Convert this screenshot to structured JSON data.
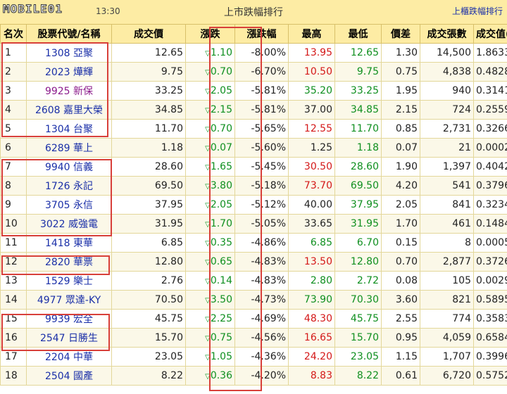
{
  "header": {
    "logo_text": "MOBILE01",
    "time": "13:30",
    "title": "上市跌幅排行",
    "link": "上櫃跌幅排行"
  },
  "columns": [
    "名次",
    "股票代號/名稱",
    "成交價",
    "漲跌",
    "漲跌幅",
    "最高",
    "最低",
    "價差",
    "成交張數",
    "成交值(億)"
  ],
  "rows": [
    {
      "rank": "1",
      "stock": "1308 亞聚",
      "price": "12.65",
      "change": "1.10",
      "pct": "-8.00%",
      "high": "13.95",
      "low": "12.65",
      "spread": "1.30",
      "vol": "14,500",
      "value": "1.8633",
      "hc": "red",
      "lc": "green"
    },
    {
      "rank": "2",
      "stock": "2023 燁輝",
      "price": "9.75",
      "change": "0.70",
      "pct": "-6.70%",
      "high": "10.50",
      "low": "9.75",
      "spread": "0.75",
      "vol": "4,838",
      "value": "0.4828",
      "hc": "red",
      "lc": "green"
    },
    {
      "rank": "3",
      "stock": "9925 新保",
      "price": "33.25",
      "change": "2.05",
      "pct": "-5.81%",
      "high": "35.20",
      "low": "33.25",
      "spread": "1.95",
      "vol": "940",
      "value": "0.3141",
      "hc": "green",
      "lc": "green",
      "purple": true
    },
    {
      "rank": "4",
      "stock": "2608 嘉里大榮",
      "price": "34.85",
      "change": "2.15",
      "pct": "-5.81%",
      "high": "37.00",
      "low": "34.85",
      "spread": "2.15",
      "vol": "724",
      "value": "0.2559",
      "hc": "black",
      "lc": "green"
    },
    {
      "rank": "5",
      "stock": "1304 台聚",
      "price": "11.70",
      "change": "0.70",
      "pct": "-5.65%",
      "high": "12.55",
      "low": "11.70",
      "spread": "0.85",
      "vol": "2,731",
      "value": "0.3266",
      "hc": "red",
      "lc": "green"
    },
    {
      "rank": "6",
      "stock": "6289 華上",
      "price": "1.18",
      "change": "0.07",
      "pct": "-5.60%",
      "high": "1.25",
      "low": "1.18",
      "spread": "0.07",
      "vol": "21",
      "value": "0.0002",
      "hc": "black",
      "lc": "green"
    },
    {
      "rank": "7",
      "stock": "9940 信義",
      "price": "28.60",
      "change": "1.65",
      "pct": "-5.45%",
      "high": "30.50",
      "low": "28.60",
      "spread": "1.90",
      "vol": "1,397",
      "value": "0.4042",
      "hc": "red",
      "lc": "green"
    },
    {
      "rank": "8",
      "stock": "1726 永記",
      "price": "69.50",
      "change": "3.80",
      "pct": "-5.18%",
      "high": "73.70",
      "low": "69.50",
      "spread": "4.20",
      "vol": "541",
      "value": "0.3796",
      "hc": "red",
      "lc": "green"
    },
    {
      "rank": "9",
      "stock": "3705 永信",
      "price": "37.95",
      "change": "2.05",
      "pct": "-5.12%",
      "high": "40.00",
      "low": "37.95",
      "spread": "2.05",
      "vol": "841",
      "value": "0.3234",
      "hc": "black",
      "lc": "green"
    },
    {
      "rank": "10",
      "stock": "3022 威強電",
      "price": "31.95",
      "change": "1.70",
      "pct": "-5.05%",
      "high": "33.65",
      "low": "31.95",
      "spread": "1.70",
      "vol": "461",
      "value": "0.1484",
      "hc": "black",
      "lc": "green"
    },
    {
      "rank": "11",
      "stock": "1418 東華",
      "price": "6.85",
      "change": "0.35",
      "pct": "-4.86%",
      "high": "6.85",
      "low": "6.70",
      "spread": "0.15",
      "vol": "8",
      "value": "0.0005",
      "hc": "green",
      "lc": "green"
    },
    {
      "rank": "12",
      "stock": "2820 華票",
      "price": "12.80",
      "change": "0.65",
      "pct": "-4.83%",
      "high": "13.50",
      "low": "12.80",
      "spread": "0.70",
      "vol": "2,877",
      "value": "0.3726",
      "hc": "red",
      "lc": "green"
    },
    {
      "rank": "13",
      "stock": "1529 樂士",
      "price": "2.76",
      "change": "0.14",
      "pct": "-4.83%",
      "high": "2.80",
      "low": "2.72",
      "spread": "0.08",
      "vol": "105",
      "value": "0.0029",
      "hc": "green",
      "lc": "green"
    },
    {
      "rank": "14",
      "stock": "4977 眾達-KY",
      "price": "70.50",
      "change": "3.50",
      "pct": "-4.73%",
      "high": "73.90",
      "low": "70.30",
      "spread": "3.60",
      "vol": "821",
      "value": "0.5895",
      "hc": "green",
      "lc": "green"
    },
    {
      "rank": "15",
      "stock": "9939 宏全",
      "price": "45.75",
      "change": "2.25",
      "pct": "-4.69%",
      "high": "48.30",
      "low": "45.75",
      "spread": "2.55",
      "vol": "774",
      "value": "0.3583",
      "hc": "red",
      "lc": "green"
    },
    {
      "rank": "16",
      "stock": "2547 日勝生",
      "price": "15.70",
      "change": "0.75",
      "pct": "-4.56%",
      "high": "16.65",
      "low": "15.70",
      "spread": "0.95",
      "vol": "4,059",
      "value": "0.6584",
      "hc": "red",
      "lc": "green"
    },
    {
      "rank": "17",
      "stock": "2204 中華",
      "price": "23.05",
      "change": "1.05",
      "pct": "-4.36%",
      "high": "24.20",
      "low": "23.05",
      "spread": "1.15",
      "vol": "1,707",
      "value": "0.3996",
      "hc": "red",
      "lc": "green"
    },
    {
      "rank": "18",
      "stock": "2504 國產",
      "price": "8.22",
      "change": "0.36",
      "pct": "-4.20%",
      "high": "8.83",
      "low": "8.22",
      "spread": "0.61",
      "vol": "6,720",
      "value": "0.5752",
      "hc": "red",
      "lc": "green"
    }
  ],
  "icons": {
    "down": "down-triangle-icon"
  },
  "colors": {
    "header_bg": "#fdeca4",
    "link": "#1a2fa8",
    "down": "#0f8f1f",
    "up": "#d41818",
    "highlight_box": "#d8403a"
  }
}
